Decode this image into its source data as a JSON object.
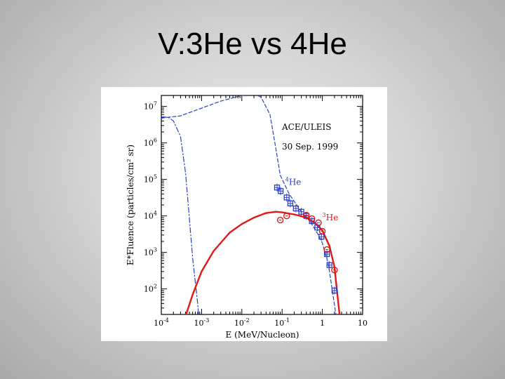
{
  "slide": {
    "title": "V:3He vs 4He"
  },
  "chart_data": {
    "type": "line",
    "xlabel": "E (MeV/Nucleon)",
    "ylabel": "E*Fluence (particles/cm² sr)",
    "x_scale": "log",
    "y_scale": "log",
    "xlim": [
      0.0001,
      10
    ],
    "ylim": [
      20,
      20000000
    ],
    "x_ticks": [
      {
        "value": 0.0001,
        "base": "10",
        "exp": "-4"
      },
      {
        "value": 0.001,
        "base": "10",
        "exp": "-3"
      },
      {
        "value": 0.01,
        "base": "10",
        "exp": "-2"
      },
      {
        "value": 0.1,
        "base": "10",
        "exp": "-1"
      },
      {
        "value": 1,
        "base": "1",
        "exp": ""
      },
      {
        "value": 10,
        "base": "10",
        "exp": ""
      }
    ],
    "y_ticks": [
      {
        "value": 100,
        "base": "10",
        "exp": "2"
      },
      {
        "value": 1000,
        "base": "10",
        "exp": "3"
      },
      {
        "value": 10000,
        "base": "10",
        "exp": "4"
      },
      {
        "value": 100000,
        "base": "10",
        "exp": "5"
      },
      {
        "value": 1000000,
        "base": "10",
        "exp": "6"
      },
      {
        "value": 10000000,
        "base": "10",
        "exp": "7"
      }
    ],
    "annotations": {
      "instrument": "ACE/ULEIS",
      "date": "30 Sep. 1999"
    },
    "series": [
      {
        "name": "⁴He",
        "label_mass": "4",
        "label_elem": "He",
        "color": "#2b3fc4",
        "label_at": [
          0.12,
          70000
        ],
        "points": [
          [
            0.075,
            60000
          ],
          [
            0.092,
            48000
          ],
          [
            0.13,
            32000
          ],
          [
            0.16,
            22000
          ],
          [
            0.22,
            16000
          ],
          [
            0.3,
            13000
          ],
          [
            0.4,
            10000
          ],
          [
            0.55,
            7200
          ],
          [
            0.75,
            4800
          ],
          [
            0.95,
            2700
          ],
          [
            1.3,
            900
          ],
          [
            1.5,
            450
          ],
          [
            2.0,
            90
          ]
        ],
        "curves": [
          {
            "style": "dashed",
            "points": [
              [
                0.0001,
                4800000
              ],
              [
                0.0003,
                5500000
              ],
              [
                0.001,
                9000000
              ],
              [
                0.003,
                14000000
              ],
              [
                0.01,
                20000000
              ],
              [
                0.02,
                22000000
              ],
              [
                0.03,
                18000000
              ],
              [
                0.05,
                6000000
              ],
              [
                0.07,
                700000
              ],
              [
                0.09,
                130000
              ],
              [
                0.15,
                40000
              ],
              [
                0.3,
                13000
              ],
              [
                0.5,
                7000
              ],
              [
                0.8,
                3000
              ],
              [
                1.0,
                1800
              ],
              [
                1.4,
                500
              ],
              [
                1.8,
                80
              ],
              [
                2.2,
                18
              ]
            ]
          },
          {
            "style": "dashdot",
            "points": [
              [
                0.0001,
                5200000
              ],
              [
                0.00015,
                5000000
              ],
              [
                0.0002,
                4000000
              ],
              [
                0.0003,
                1500000
              ],
              [
                0.0004,
                150000
              ],
              [
                0.0005,
                8000
              ],
              [
                0.0006,
                700
              ],
              [
                0.0007,
                150
              ],
              [
                0.0008,
                40
              ],
              [
                0.00085,
                18
              ]
            ]
          }
        ]
      },
      {
        "name": "³He",
        "label_mass": "3",
        "label_elem": "He",
        "color": "#e01818",
        "label_at": [
          1.0,
          7500
        ],
        "points": [
          [
            0.09,
            7700
          ],
          [
            0.13,
            10000
          ],
          [
            0.4,
            10500
          ],
          [
            0.55,
            8400
          ],
          [
            0.8,
            6500
          ],
          [
            1.0,
            3800
          ],
          [
            1.3,
            1200
          ],
          [
            2.0,
            330
          ]
        ],
        "curves": [
          {
            "style": "solid",
            "points": [
              [
                0.0004,
                18
              ],
              [
                0.0006,
                70
              ],
              [
                0.001,
                300
              ],
              [
                0.002,
                1100
              ],
              [
                0.005,
                3500
              ],
              [
                0.01,
                6000
              ],
              [
                0.02,
                9000
              ],
              [
                0.04,
                12000
              ],
              [
                0.07,
                13000
              ],
              [
                0.1,
                12500
              ],
              [
                0.2,
                11000
              ],
              [
                0.4,
                9000
              ],
              [
                0.7,
                6000
              ],
              [
                1.0,
                4000
              ],
              [
                1.5,
                1500
              ],
              [
                2.0,
                400
              ],
              [
                2.4,
                60
              ],
              [
                2.7,
                18
              ]
            ]
          }
        ]
      }
    ]
  }
}
